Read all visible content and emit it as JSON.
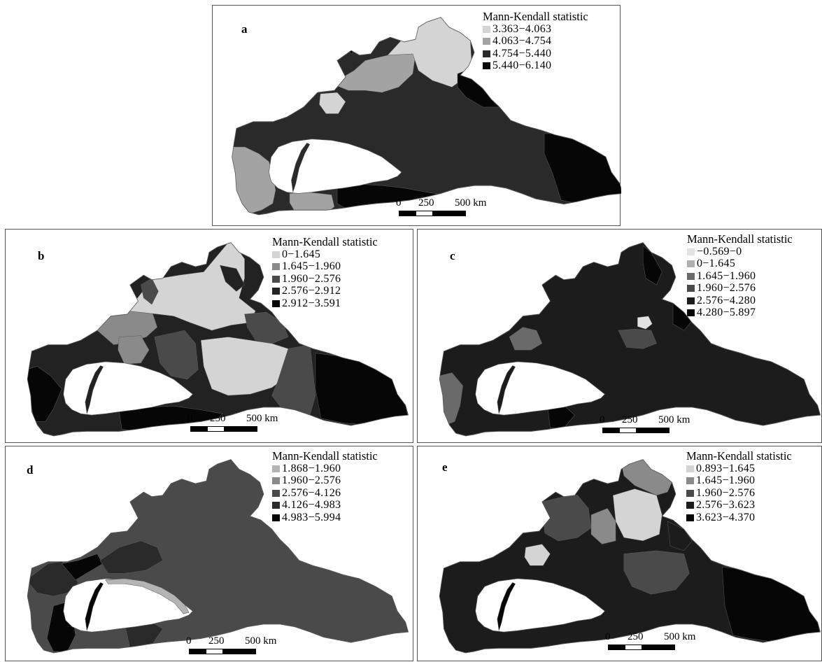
{
  "colors": {
    "c1": "#d4d4d4",
    "c2": "#a3a3a3",
    "c3": "#6a6a6a",
    "c4": "#4a4a4a",
    "c5": "#2a2a2a",
    "c6": "#161616",
    "c7": "#060606",
    "border": "#5a5a5a",
    "bg": "#ffffff"
  },
  "scale": {
    "t0": "0",
    "t250": "250",
    "t500": "500 km"
  },
  "panels": [
    {
      "id": "a",
      "legend_title": "Mann-Kendall statistic",
      "classes": [
        {
          "label": "3.363−4.063",
          "color": "#d4d4d4"
        },
        {
          "label": "4.063−4.754",
          "color": "#a3a3a3"
        },
        {
          "label": "4.754−5.440",
          "color": "#2a2a2a"
        },
        {
          "label": "5.440−6.140",
          "color": "#060606"
        }
      ]
    },
    {
      "id": "b",
      "legend_title": "Mann-Kendall statistic",
      "classes": [
        {
          "label": "0−1.645",
          "color": "#d4d4d4"
        },
        {
          "label": "1.645−1.960",
          "color": "#8a8a8a"
        },
        {
          "label": "1.960−2.576",
          "color": "#4a4a4a"
        },
        {
          "label": "2.576−2.912",
          "color": "#222222"
        },
        {
          "label": "2.912−3.591",
          "color": "#060606"
        }
      ]
    },
    {
      "id": "c",
      "legend_title": "Mann-Kendall statistic",
      "classes": [
        {
          "label": "−0.569−0",
          "color": "#e2e2e2"
        },
        {
          "label": "0−1.645",
          "color": "#b0b0b0"
        },
        {
          "label": "1.645−1.960",
          "color": "#6a6a6a"
        },
        {
          "label": "1.960−2.576",
          "color": "#4a4a4a"
        },
        {
          "label": "2.576−4.280",
          "color": "#1c1c1c"
        },
        {
          "label": "4.280−5.897",
          "color": "#060606"
        }
      ]
    },
    {
      "id": "d",
      "legend_title": "Mann-Kendall statistic",
      "classes": [
        {
          "label": "1.868−1.960",
          "color": "#b4b4b4"
        },
        {
          "label": "1.960−2.576",
          "color": "#8a8a8a"
        },
        {
          "label": "2.576−4.126",
          "color": "#4a4a4a"
        },
        {
          "label": "4.126−4.983",
          "color": "#2a2a2a"
        },
        {
          "label": "4.983−5.994",
          "color": "#060606"
        }
      ]
    },
    {
      "id": "e",
      "legend_title": "Mann-Kendall statistic",
      "classes": [
        {
          "label": "0.893−1.645",
          "color": "#d4d4d4"
        },
        {
          "label": "1.645−1.960",
          "color": "#8a8a8a"
        },
        {
          "label": "1.960−2.576",
          "color": "#4a4a4a"
        },
        {
          "label": "2.576−3.623",
          "color": "#1c1c1c"
        },
        {
          "label": "3.623−4.370",
          "color": "#060606"
        }
      ]
    }
  ]
}
